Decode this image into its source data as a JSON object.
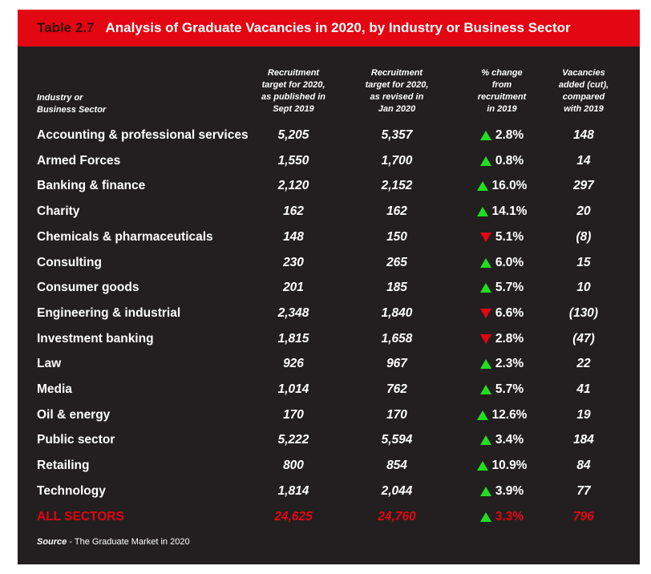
{
  "title": {
    "number": "Table 2.7",
    "text": "Analysis of Graduate Vacancies in 2020, by Industry or Business Sector"
  },
  "headers": {
    "sector": "Industry or\nBusiness Sector",
    "target_2019": "Recruitment\ntarget for 2020,\nas published in\nSept 2019",
    "target_2020": "Recruitment\ntarget for 2020,\nas revised in\nJan 2020",
    "change": "% change\nfrom\nrecruitment\nin 2019",
    "added": "Vacancies\nadded (cut),\ncompared\nwith 2019"
  },
  "rows": [
    {
      "sector": "Accounting & professional services",
      "pub": "5,205",
      "rev": "5,357",
      "dir": "up",
      "chg": "2.8%",
      "added": "148"
    },
    {
      "sector": "Armed Forces",
      "pub": "1,550",
      "rev": "1,700",
      "dir": "up",
      "chg": "0.8%",
      "added": "14"
    },
    {
      "sector": "Banking & finance",
      "pub": "2,120",
      "rev": "2,152",
      "dir": "up",
      "chg": "16.0%",
      "added": "297"
    },
    {
      "sector": "Charity",
      "pub": "162",
      "rev": "162",
      "dir": "up",
      "chg": "14.1%",
      "added": "20"
    },
    {
      "sector": "Chemicals & pharmaceuticals",
      "pub": "148",
      "rev": "150",
      "dir": "down",
      "chg": "5.1%",
      "added": "(8)"
    },
    {
      "sector": "Consulting",
      "pub": "230",
      "rev": "265",
      "dir": "up",
      "chg": "6.0%",
      "added": "15"
    },
    {
      "sector": "Consumer goods",
      "pub": "201",
      "rev": "185",
      "dir": "up",
      "chg": "5.7%",
      "added": "10"
    },
    {
      "sector": "Engineering & industrial",
      "pub": "2,348",
      "rev": "1,840",
      "dir": "down",
      "chg": "6.6%",
      "added": "(130)"
    },
    {
      "sector": "Investment banking",
      "pub": "1,815",
      "rev": "1,658",
      "dir": "down",
      "chg": "2.8%",
      "added": "(47)"
    },
    {
      "sector": "Law",
      "pub": "926",
      "rev": "967",
      "dir": "up",
      "chg": "2.3%",
      "added": "22"
    },
    {
      "sector": "Media",
      "pub": "1,014",
      "rev": "762",
      "dir": "up",
      "chg": "5.7%",
      "added": "41"
    },
    {
      "sector": "Oil & energy",
      "pub": "170",
      "rev": "170",
      "dir": "up",
      "chg": "12.6%",
      "added": "19"
    },
    {
      "sector": "Public sector",
      "pub": "5,222",
      "rev": "5,594",
      "dir": "up",
      "chg": "3.4%",
      "added": "184"
    },
    {
      "sector": "Retailing",
      "pub": "800",
      "rev": "854",
      "dir": "up",
      "chg": "10.9%",
      "added": "84"
    },
    {
      "sector": "Technology",
      "pub": "1,814",
      "rev": "2,044",
      "dir": "up",
      "chg": "3.9%",
      "added": "77"
    }
  ],
  "total": {
    "sector": "ALL SECTORS",
    "pub": "24,625",
    "rev": "24,760",
    "dir": "up",
    "chg": "3.3%",
    "added": "796"
  },
  "source": {
    "label": "Source",
    "text": " - The Graduate Market in 2020"
  },
  "colors": {
    "accent": "#e30613",
    "background": "#231f20",
    "up": "#22dd22",
    "down": "#e30613"
  }
}
